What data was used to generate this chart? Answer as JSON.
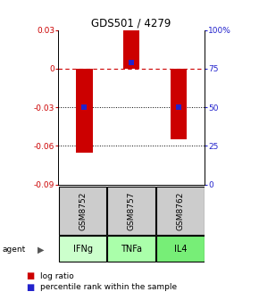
{
  "title": "GDS501 / 4279",
  "samples": [
    "GSM8752",
    "GSM8757",
    "GSM8762"
  ],
  "agents": [
    "IFNg",
    "TNFa",
    "IL4"
  ],
  "bar_values": [
    -0.065,
    0.03,
    -0.055
  ],
  "percentile_values": [
    -0.03,
    0.005,
    -0.03
  ],
  "bar_color": "#cc0000",
  "percentile_color": "#2222cc",
  "ylim_left": [
    -0.09,
    0.03
  ],
  "ylim_right": [
    0,
    100
  ],
  "yticks_left": [
    0.03,
    0.0,
    -0.03,
    -0.06,
    -0.09
  ],
  "yticks_right": [
    100,
    75,
    50,
    25,
    0
  ],
  "ytick_labels_left": [
    "0.03",
    "0",
    "-0.03",
    "-0.06",
    "-0.09"
  ],
  "ytick_labels_right": [
    "100%",
    "75",
    "50",
    "25",
    "0"
  ],
  "bar_width": 0.35,
  "agent_colors": [
    "#ccffcc",
    "#aaffaa",
    "#77ee77"
  ],
  "gsm_bg": "#cccccc",
  "legend_log_color": "#cc0000",
  "legend_pct_color": "#2222cc"
}
